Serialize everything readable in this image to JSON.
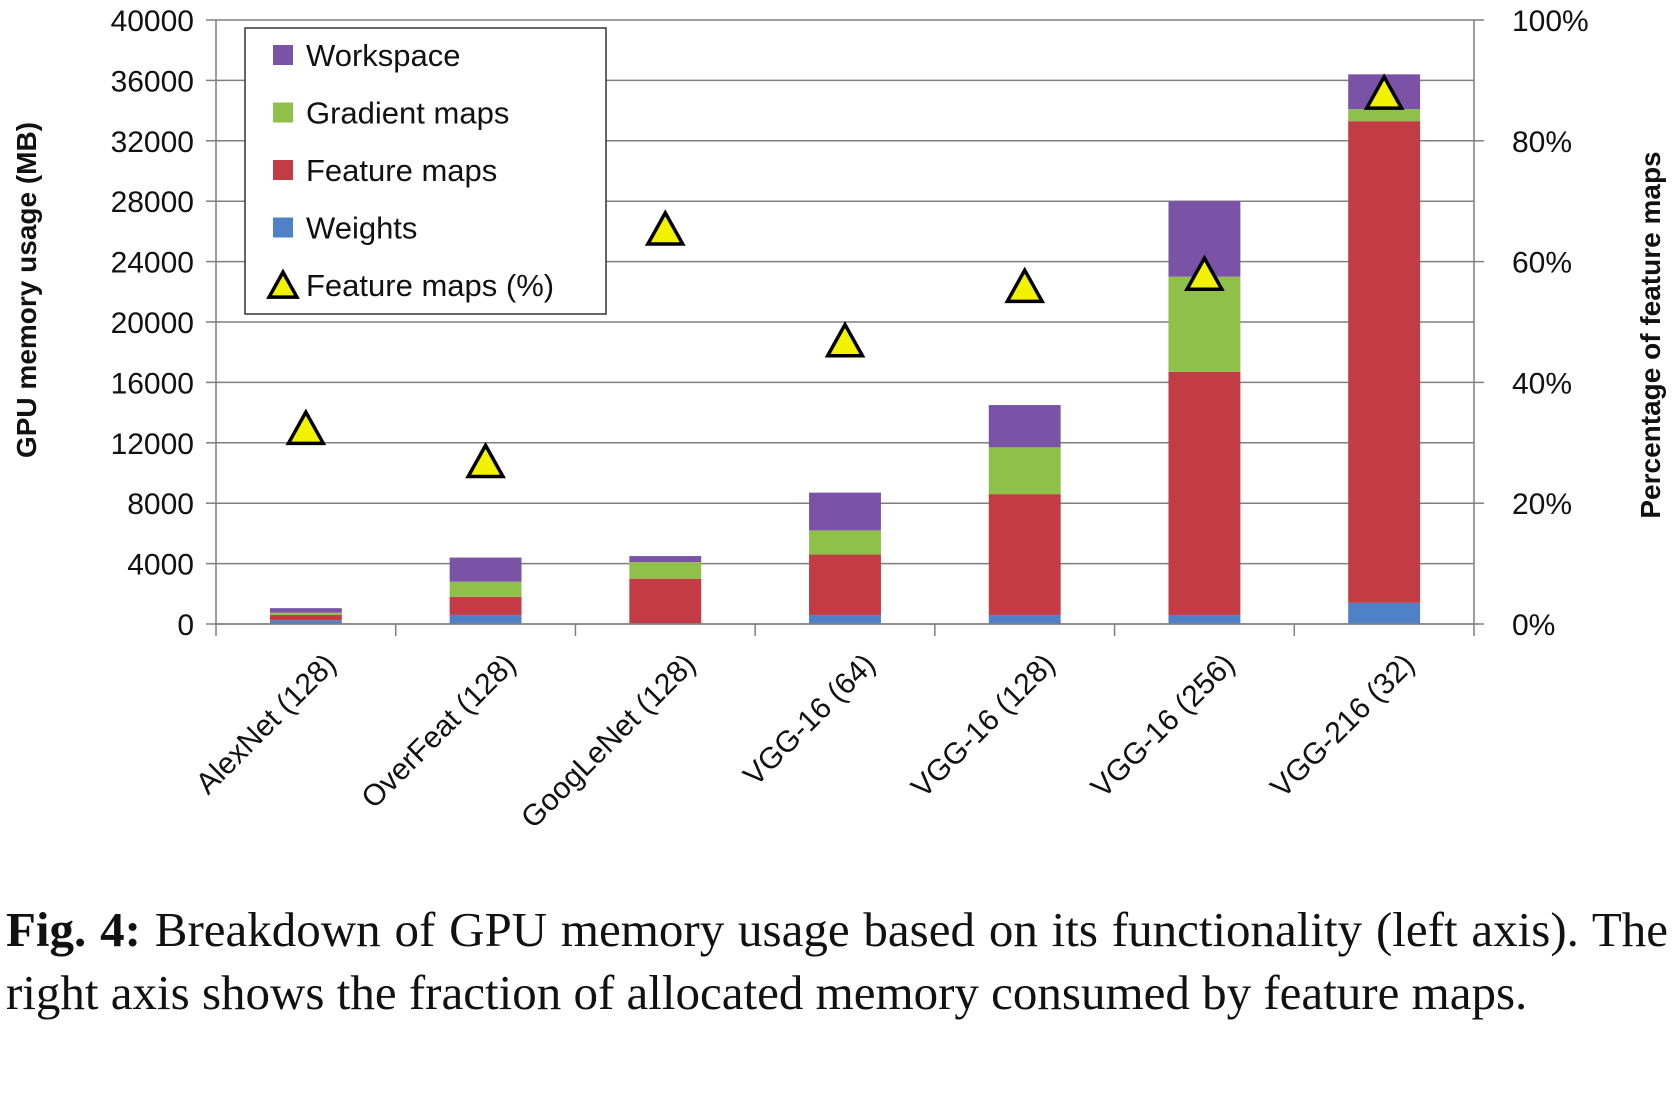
{
  "chart_data": {
    "type": "bar",
    "stacked": true,
    "categories": [
      "AlexNet  (128)",
      "OverFeat (128)",
      "GoogLeNet (128)",
      "VGG-16 (64)",
      "VGG-16 (128)",
      "VGG-16 (256)",
      "VGG-216 (32)"
    ],
    "series": [
      {
        "name": "Weights",
        "color": "#4f81c6",
        "values": [
          250,
          600,
          50,
          600,
          600,
          600,
          1400
        ]
      },
      {
        "name": "Feature maps",
        "color": "#c23b45",
        "values": [
          350,
          1200,
          2950,
          4000,
          8000,
          16100,
          31900
        ]
      },
      {
        "name": "Gradient maps",
        "color": "#8fc04a",
        "values": [
          150,
          1000,
          1100,
          1600,
          3100,
          6300,
          800
        ]
      },
      {
        "name": "Workspace",
        "color": "#7a53a6",
        "values": [
          300,
          1600,
          400,
          2500,
          2800,
          5000,
          2300
        ]
      }
    ],
    "secondary_series": {
      "name": "Feature maps (%)",
      "type": "scatter",
      "marker": "triangle",
      "color": "#f2f200",
      "values": [
        32,
        26.5,
        65,
        46.5,
        55.5,
        57.5,
        87.5
      ]
    },
    "ylabel": "GPU memory usage (MB)",
    "ylim": [
      0,
      40000
    ],
    "yticks": [
      "0",
      "4000",
      "8000",
      "12000",
      "16000",
      "20000",
      "24000",
      "28000",
      "32000",
      "36000",
      "40000"
    ],
    "y2label": "Percentage of feature maps",
    "y2lim": [
      0,
      100
    ],
    "y2ticks": [
      "0%",
      "20%",
      "40%",
      "60%",
      "80%",
      "100%"
    ],
    "legend": {
      "position": "top-left",
      "entries": [
        "Workspace",
        "Gradient maps",
        "Feature maps",
        "Weights",
        "Feature maps (%)"
      ]
    },
    "grid": true
  },
  "caption": {
    "label": "Fig. 4:",
    "text": " Breakdown of GPU memory usage based on its functionality (left axis). The right axis shows the fraction of allocated memory consumed by feature maps."
  }
}
